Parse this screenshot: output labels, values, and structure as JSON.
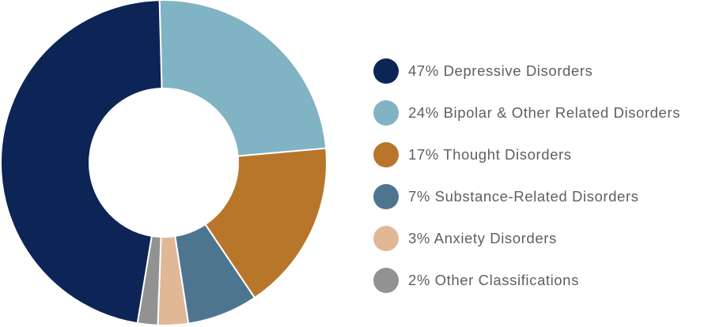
{
  "chart_data": {
    "type": "pie",
    "donut": true,
    "legend_position": "right",
    "slices": [
      {
        "label": "47% Depressive Disorders",
        "value": 47,
        "color": "#0d2456"
      },
      {
        "label": "24% Bipolar & Other Related Disorders",
        "value": 24,
        "color": "#80b3c3"
      },
      {
        "label": "17% Thought Disorders",
        "value": 17,
        "color": "#b8762b"
      },
      {
        "label": "7% Substance-Related Disorders",
        "value": 7,
        "color": "#4d7590"
      },
      {
        "label": "3% Anxiety Disorders",
        "value": 3,
        "color": "#e0b896"
      },
      {
        "label": "2% Other Classifications",
        "value": 2,
        "color": "#929292"
      }
    ]
  }
}
